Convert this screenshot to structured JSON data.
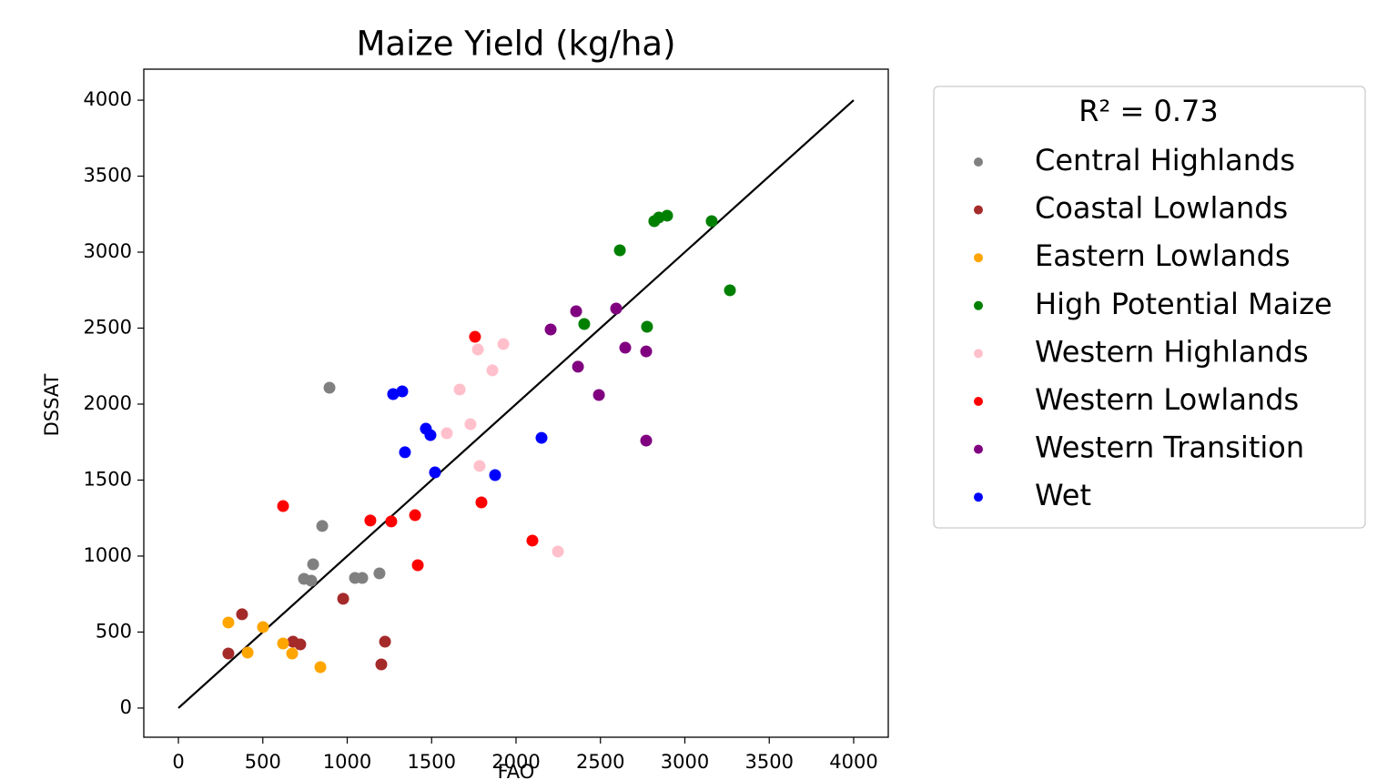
{
  "chart_data": {
    "type": "scatter",
    "title": "Maize Yield (kg/ha)",
    "xlabel": "FAO",
    "ylabel": "DSSAT",
    "legend_title": "R² = 0.73",
    "legend": "right",
    "xlim": [
      -205,
      4205
    ],
    "ylim": [
      -192,
      4204
    ],
    "xticks": [
      0,
      500,
      1000,
      1500,
      2000,
      2500,
      3000,
      3500,
      4000
    ],
    "yticks": [
      0,
      500,
      1000,
      1500,
      2000,
      2500,
      3000,
      3500,
      4000
    ],
    "reference_line": {
      "x": [
        0,
        4000
      ],
      "y": [
        0,
        4000
      ],
      "color": "#000000"
    },
    "series": [
      {
        "name": "Central Highlands",
        "color": "#808080",
        "x": [
          895,
          852,
          798,
          744,
          787,
          1046,
          1089,
          1191
        ],
        "y": [
          2108,
          1198,
          946,
          850,
          838,
          856,
          856,
          886
        ]
      },
      {
        "name": "Coastal Lowlands",
        "color": "#a52a2a",
        "x": [
          377,
          296,
          679,
          722,
          976,
          1224,
          1202
        ],
        "y": [
          617,
          359,
          437,
          419,
          719,
          437,
          287
        ]
      },
      {
        "name": "Eastern Lowlands",
        "color": "#ffa500",
        "x": [
          296,
          501,
          410,
          620,
          674,
          841
        ],
        "y": [
          563,
          533,
          365,
          425,
          359,
          269
        ]
      },
      {
        "name": "High Potential Maize",
        "color": "#008000",
        "x": [
          2615,
          2404,
          2776,
          2819,
          2846,
          2895,
          3159,
          3267
        ],
        "y": [
          3012,
          2527,
          2509,
          3204,
          3228,
          3240,
          3204,
          2749
        ]
      },
      {
        "name": "Western Highlands",
        "color": "#ffc0cb",
        "x": [
          1774,
          1925,
          1860,
          1666,
          1730,
          1590,
          1784,
          2248
        ],
        "y": [
          2359,
          2395,
          2222,
          2096,
          1868,
          1808,
          1593,
          1030
        ]
      },
      {
        "name": "Western Lowlands",
        "color": "#ff0000",
        "x": [
          1757,
          620,
          1137,
          1261,
          1402,
          1418,
          1795,
          2097
        ],
        "y": [
          2443,
          1329,
          1234,
          1228,
          1269,
          940,
          1353,
          1102
        ]
      },
      {
        "name": "Western Transition",
        "color": "#800080",
        "x": [
          2205,
          2356,
          2593,
          2647,
          2771,
          2367,
          2491,
          2771
        ],
        "y": [
          2491,
          2611,
          2629,
          2371,
          2347,
          2246,
          2060,
          1760
        ]
      },
      {
        "name": "Wet",
        "color": "#0000ff",
        "x": [
          1272,
          1326,
          1466,
          1493,
          1342,
          1520,
          1876,
          2151
        ],
        "y": [
          2066,
          2084,
          1838,
          1796,
          1683,
          1551,
          1533,
          1778
        ]
      }
    ]
  }
}
